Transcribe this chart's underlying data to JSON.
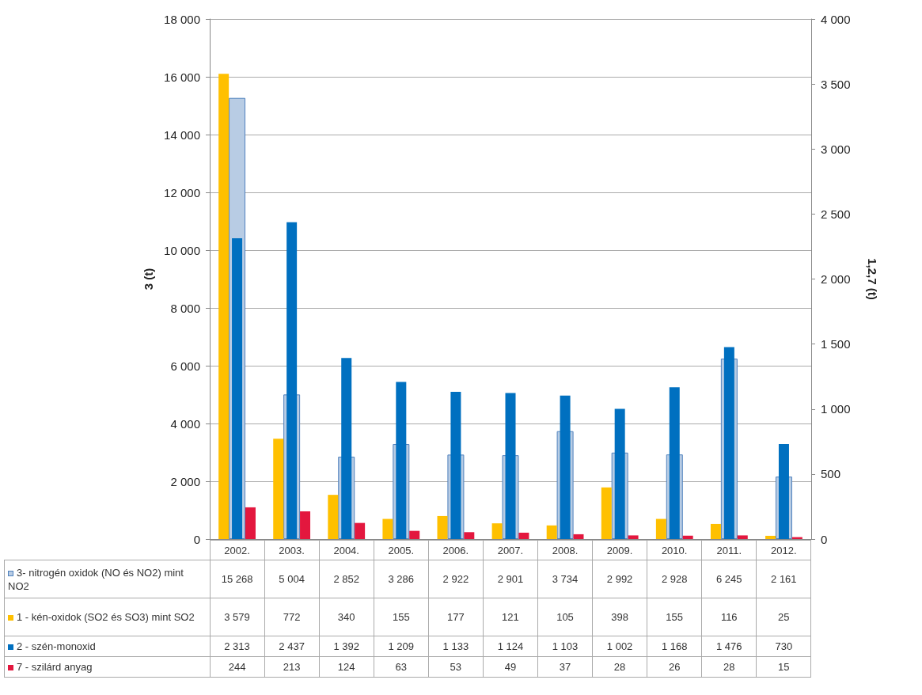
{
  "chart_data": {
    "type": "bar",
    "categories": [
      "2002.",
      "2003.",
      "2004.",
      "2005.",
      "2006.",
      "2007.",
      "2008.",
      "2009.",
      "2010.",
      "2011.",
      "2012."
    ],
    "ylabel": "3 (t)",
    "y2label": "1,2,7 (t)",
    "ylim": [
      0,
      18000
    ],
    "yticks": [
      {
        "value": 0,
        "label": "0"
      },
      {
        "value": 2000,
        "label": "2 000"
      },
      {
        "value": 4000,
        "label": "4 000"
      },
      {
        "value": 6000,
        "label": "6 000"
      },
      {
        "value": 8000,
        "label": "8 000"
      },
      {
        "value": 10000,
        "label": "10 000"
      },
      {
        "value": 12000,
        "label": "12 000"
      },
      {
        "value": 14000,
        "label": "14 000"
      },
      {
        "value": 16000,
        "label": "16 000"
      },
      {
        "value": 18000,
        "label": "18 000"
      }
    ],
    "y2lim": [
      0,
      4000
    ],
    "y2ticks": [
      {
        "value": 0,
        "label": "0"
      },
      {
        "value": 500,
        "label": "500"
      },
      {
        "value": 1000,
        "label": "1 000"
      },
      {
        "value": 1500,
        "label": "1 500"
      },
      {
        "value": 2000,
        "label": "2 000"
      },
      {
        "value": 2500,
        "label": "2 500"
      },
      {
        "value": 3000,
        "label": "3 000"
      },
      {
        "value": 3500,
        "label": "3 500"
      },
      {
        "value": 4000,
        "label": "4 000"
      }
    ],
    "grid": "y",
    "legend": "bottom",
    "data_labels": true,
    "series": [
      {
        "name": "3- nitrogén oxidok (NO és NO2) mint NO2",
        "color": "#b8cce4",
        "values": [
          15268,
          5004,
          2852,
          3286,
          2922,
          2901,
          3734,
          2992,
          2928,
          6245,
          2161
        ]
      },
      {
        "name": "1 - kén-oxidok (SO2 és SO3) mint SO2",
        "color": "#ffc000",
        "axis": "y2",
        "values": [
          3579,
          772,
          340,
          155,
          177,
          121,
          105,
          398,
          155,
          116,
          25
        ]
      },
      {
        "name": "2 - szén-monoxid",
        "color": "#0070c0",
        "axis": "y2",
        "values": [
          2313,
          2437,
          1392,
          1209,
          1133,
          1124,
          1103,
          1002,
          1168,
          1476,
          730
        ]
      },
      {
        "name": "7 - szilárd anyag",
        "color": "#e3173e",
        "axis": "y2",
        "values": [
          244,
          213,
          124,
          63,
          53,
          49,
          37,
          28,
          26,
          28,
          15
        ]
      }
    ]
  }
}
